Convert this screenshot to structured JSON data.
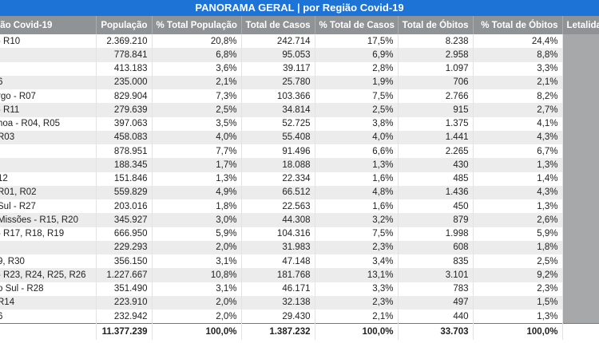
{
  "title": "PANORAMA GERAL | por Região Covid-19",
  "columns": [
    "ião Covid-19",
    "População",
    "% Total População",
    "Total de Casos",
    "% Total de Casos",
    "Total de Óbitos",
    "% Total de Óbitos",
    "Letalidade"
  ],
  "rows": [
    {
      "regiao": "- R10",
      "pop": "2.369.210",
      "pct_pop": "20,8%",
      "casos": "242.714",
      "pct_casos": "17,5%",
      "obitos": "8.238",
      "pct_obitos": "24,4%"
    },
    {
      "regiao": "",
      "pop": "778.841",
      "pct_pop": "6,8%",
      "casos": "95.053",
      "pct_casos": "6,9%",
      "obitos": "2.958",
      "pct_obitos": "8,8%"
    },
    {
      "regiao": "",
      "pop": "413.183",
      "pct_pop": "3,6%",
      "casos": "39.117",
      "pct_casos": "2,8%",
      "obitos": "1.097",
      "pct_obitos": "3,3%"
    },
    {
      "regiao": "6",
      "pop": "235.000",
      "pct_pop": "2,1%",
      "casos": "25.780",
      "pct_casos": "1,9%",
      "obitos": "706",
      "pct_obitos": "2,1%"
    },
    {
      "regiao": "rgo - R07",
      "pop": "829.904",
      "pct_pop": "7,3%",
      "casos": "103.366",
      "pct_casos": "7,5%",
      "obitos": "2.766",
      "pct_obitos": "8,2%"
    },
    {
      "regiao": "- R11",
      "pop": "279.639",
      "pct_pop": "2,5%",
      "casos": "34.814",
      "pct_casos": "2,5%",
      "obitos": "915",
      "pct_obitos": "2,7%"
    },
    {
      "regiao": "hoa - R04, R05",
      "pop": "397.063",
      "pct_pop": "3,5%",
      "casos": "52.725",
      "pct_casos": "3,8%",
      "obitos": "1.375",
      "pct_obitos": "4,1%"
    },
    {
      "regiao": "R03",
      "pop": "458.083",
      "pct_pop": "4,0%",
      "casos": "55.408",
      "pct_casos": "4,0%",
      "obitos": "1.441",
      "pct_obitos": "4,3%"
    },
    {
      "regiao": "",
      "pop": "878.951",
      "pct_pop": "7,7%",
      "casos": "91.496",
      "pct_casos": "6,6%",
      "obitos": "2.265",
      "pct_obitos": "6,7%"
    },
    {
      "regiao": "",
      "pop": "188.345",
      "pct_pop": "1,7%",
      "casos": "18.088",
      "pct_casos": "1,3%",
      "obitos": "430",
      "pct_obitos": "1,3%"
    },
    {
      "regiao": "12",
      "pop": "151.846",
      "pct_pop": "1,3%",
      "casos": "22.334",
      "pct_casos": "1,6%",
      "obitos": "485",
      "pct_obitos": "1,4%"
    },
    {
      "regiao": "R01, R02",
      "pop": "559.829",
      "pct_pop": "4,9%",
      "casos": "66.512",
      "pct_casos": "4,8%",
      "obitos": "1.436",
      "pct_obitos": "4,3%"
    },
    {
      "regiao": "Sul - R27",
      "pop": "203.016",
      "pct_pop": "1,8%",
      "casos": "22.563",
      "pct_casos": "1,6%",
      "obitos": "450",
      "pct_obitos": "1,3%"
    },
    {
      "regiao": "Missões - R15, R20",
      "pop": "345.927",
      "pct_pop": "3,0%",
      "casos": "44.308",
      "pct_casos": "3,2%",
      "obitos": "879",
      "pct_obitos": "2,6%"
    },
    {
      "regiao": "- R17, R18, R19",
      "pop": "666.950",
      "pct_pop": "5,9%",
      "casos": "104.316",
      "pct_casos": "7,5%",
      "obitos": "1.998",
      "pct_obitos": "5,9%"
    },
    {
      "regiao": "",
      "pop": "229.293",
      "pct_pop": "2,0%",
      "casos": "31.983",
      "pct_casos": "2,3%",
      "obitos": "608",
      "pct_obitos": "1,8%"
    },
    {
      "regiao": "9, R30",
      "pop": "356.150",
      "pct_pop": "3,1%",
      "casos": "47.148",
      "pct_casos": "3,4%",
      "obitos": "835",
      "pct_obitos": "2,5%"
    },
    {
      "regiao": "- R23, R24, R25, R26",
      "pop": "1.227.667",
      "pct_pop": "10,8%",
      "casos": "181.768",
      "pct_casos": "13,1%",
      "obitos": "3.101",
      "pct_obitos": "9,2%"
    },
    {
      "regiao": "o Sul - R28",
      "pop": "351.490",
      "pct_pop": "3,1%",
      "casos": "46.171",
      "pct_casos": "3,3%",
      "obitos": "783",
      "pct_obitos": "2,3%"
    },
    {
      "regiao": "R14",
      "pop": "223.910",
      "pct_pop": "2,0%",
      "casos": "32.138",
      "pct_casos": "2,3%",
      "obitos": "497",
      "pct_obitos": "1,5%"
    },
    {
      "regiao": "6",
      "pop": "232.942",
      "pct_pop": "2,0%",
      "casos": "29.430",
      "pct_casos": "2,1%",
      "obitos": "440",
      "pct_obitos": "1,3%"
    }
  ],
  "total": {
    "regiao": "",
    "pop": "11.377.239",
    "pct_pop": "100,0%",
    "casos": "1.387.232",
    "pct_casos": "100,0%",
    "obitos": "33.703",
    "pct_obitos": "100,0%"
  }
}
